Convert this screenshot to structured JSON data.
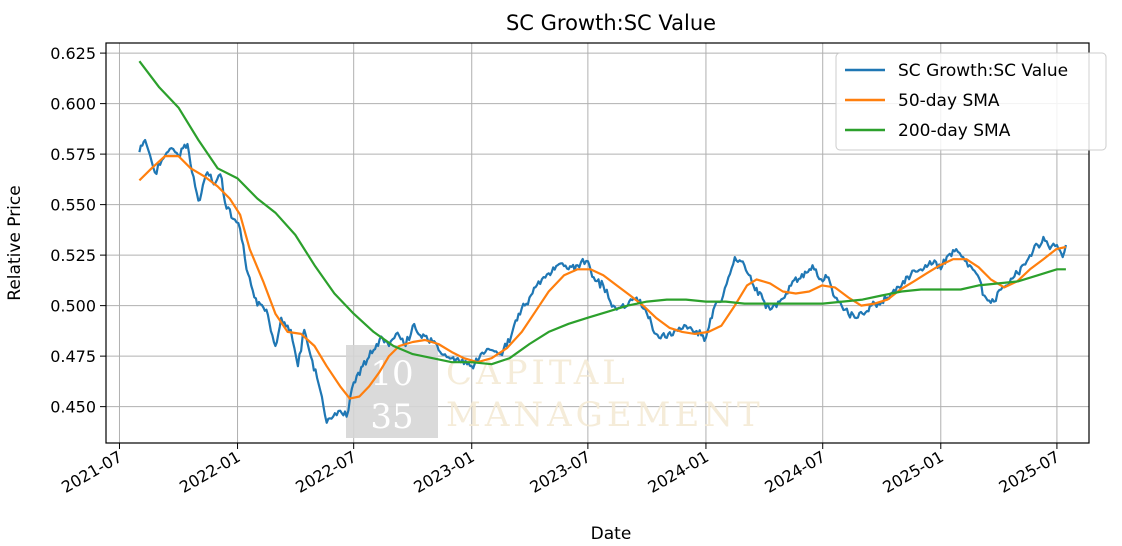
{
  "chart_data": {
    "type": "line",
    "title": "SC Growth:SC Value",
    "xlabel": "Date",
    "ylabel": "Relative Price",
    "xlim": [
      "2021-06-10",
      "2025-08-20"
    ],
    "ylim": [
      0.432,
      0.63
    ],
    "x_ticks": [
      "2021-07",
      "2022-01",
      "2022-07",
      "2023-01",
      "2023-07",
      "2024-01",
      "2024-07",
      "2025-01",
      "2025-07"
    ],
    "y_ticks": [
      "0.450",
      "0.475",
      "0.500",
      "0.525",
      "0.550",
      "0.575",
      "0.600",
      "0.625"
    ],
    "grid": true,
    "legend_position": "top-right",
    "series": [
      {
        "name": "SC Growth:SC Value",
        "color": "#1f77b4",
        "points": [
          [
            "2021-08-01",
            0.576
          ],
          [
            "2021-08-10",
            0.582
          ],
          [
            "2021-08-25",
            0.566
          ],
          [
            "2021-09-05",
            0.572
          ],
          [
            "2021-09-20",
            0.578
          ],
          [
            "2021-10-01",
            0.574
          ],
          [
            "2021-10-15",
            0.58
          ],
          [
            "2021-10-22",
            0.566
          ],
          [
            "2021-11-01",
            0.552
          ],
          [
            "2021-11-15",
            0.566
          ],
          [
            "2021-11-25",
            0.56
          ],
          [
            "2021-12-05",
            0.565
          ],
          [
            "2021-12-15",
            0.548
          ],
          [
            "2021-12-25",
            0.543
          ],
          [
            "2022-01-05",
            0.538
          ],
          [
            "2022-01-15",
            0.518
          ],
          [
            "2022-02-01",
            0.5
          ],
          [
            "2022-02-15",
            0.498
          ],
          [
            "2022-03-01",
            0.48
          ],
          [
            "2022-03-10",
            0.494
          ],
          [
            "2022-03-25",
            0.488
          ],
          [
            "2022-04-05",
            0.47
          ],
          [
            "2022-04-15",
            0.488
          ],
          [
            "2022-04-25",
            0.475
          ],
          [
            "2022-05-10",
            0.458
          ],
          [
            "2022-05-20",
            0.442
          ],
          [
            "2022-05-30",
            0.445
          ],
          [
            "2022-06-10",
            0.448
          ],
          [
            "2022-06-20",
            0.445
          ],
          [
            "2022-07-01",
            0.462
          ],
          [
            "2022-07-15",
            0.47
          ],
          [
            "2022-08-01",
            0.478
          ],
          [
            "2022-08-15",
            0.484
          ],
          [
            "2022-08-25",
            0.48
          ],
          [
            "2022-09-05",
            0.486
          ],
          [
            "2022-09-20",
            0.48
          ],
          [
            "2022-10-01",
            0.49
          ],
          [
            "2022-10-15",
            0.484
          ],
          [
            "2022-11-01",
            0.482
          ],
          [
            "2022-11-15",
            0.476
          ],
          [
            "2022-12-01",
            0.474
          ],
          [
            "2022-12-15",
            0.472
          ],
          [
            "2023-01-01",
            0.47
          ],
          [
            "2023-01-15",
            0.476
          ],
          [
            "2023-02-01",
            0.478
          ],
          [
            "2023-02-15",
            0.476
          ],
          [
            "2023-03-01",
            0.482
          ],
          [
            "2023-03-15",
            0.496
          ],
          [
            "2023-04-01",
            0.504
          ],
          [
            "2023-04-15",
            0.512
          ],
          [
            "2023-05-01",
            0.516
          ],
          [
            "2023-05-15",
            0.52
          ],
          [
            "2023-06-01",
            0.518
          ],
          [
            "2023-06-15",
            0.52
          ],
          [
            "2023-07-01",
            0.522
          ],
          [
            "2023-07-10",
            0.514
          ],
          [
            "2023-07-25",
            0.51
          ],
          [
            "2023-08-05",
            0.502
          ],
          [
            "2023-08-15",
            0.498
          ],
          [
            "2023-09-01",
            0.5
          ],
          [
            "2023-09-15",
            0.504
          ],
          [
            "2023-10-01",
            0.496
          ],
          [
            "2023-10-15",
            0.486
          ],
          [
            "2023-11-01",
            0.484
          ],
          [
            "2023-11-15",
            0.488
          ],
          [
            "2023-12-01",
            0.49
          ],
          [
            "2023-12-15",
            0.487
          ],
          [
            "2024-01-01",
            0.484
          ],
          [
            "2024-01-15",
            0.5
          ],
          [
            "2024-01-25",
            0.502
          ],
          [
            "2024-02-05",
            0.514
          ],
          [
            "2024-02-15",
            0.524
          ],
          [
            "2024-03-01",
            0.52
          ],
          [
            "2024-03-15",
            0.51
          ],
          [
            "2024-04-01",
            0.502
          ],
          [
            "2024-04-10",
            0.498
          ],
          [
            "2024-04-25",
            0.502
          ],
          [
            "2024-05-05",
            0.506
          ],
          [
            "2024-05-15",
            0.512
          ],
          [
            "2024-06-01",
            0.514
          ],
          [
            "2024-06-15",
            0.52
          ],
          [
            "2024-07-01",
            0.512
          ],
          [
            "2024-07-10",
            0.514
          ],
          [
            "2024-07-20",
            0.504
          ],
          [
            "2024-08-05",
            0.498
          ],
          [
            "2024-08-20",
            0.494
          ],
          [
            "2024-09-01",
            0.496
          ],
          [
            "2024-09-15",
            0.5
          ],
          [
            "2024-10-01",
            0.502
          ],
          [
            "2024-10-15",
            0.506
          ],
          [
            "2024-11-01",
            0.51
          ],
          [
            "2024-11-15",
            0.515
          ],
          [
            "2024-12-01",
            0.518
          ],
          [
            "2024-12-15",
            0.522
          ],
          [
            "2025-01-01",
            0.518
          ],
          [
            "2025-01-10",
            0.524
          ],
          [
            "2025-01-25",
            0.528
          ],
          [
            "2025-02-05",
            0.524
          ],
          [
            "2025-02-15",
            0.52
          ],
          [
            "2025-02-25",
            0.516
          ],
          [
            "2025-03-10",
            0.505
          ],
          [
            "2025-03-25",
            0.502
          ],
          [
            "2025-04-05",
            0.508
          ],
          [
            "2025-04-15",
            0.51
          ],
          [
            "2025-05-01",
            0.516
          ],
          [
            "2025-05-15",
            0.522
          ],
          [
            "2025-06-01",
            0.53
          ],
          [
            "2025-06-10",
            0.534
          ],
          [
            "2025-06-20",
            0.528
          ],
          [
            "2025-07-01",
            0.53
          ],
          [
            "2025-07-10",
            0.524
          ],
          [
            "2025-07-15",
            0.53
          ]
        ]
      },
      {
        "name": "50-day SMA",
        "color": "#ff7f0e",
        "points": [
          [
            "2021-08-01",
            0.562
          ],
          [
            "2021-08-20",
            0.568
          ],
          [
            "2021-09-10",
            0.574
          ],
          [
            "2021-10-01",
            0.574
          ],
          [
            "2021-10-20",
            0.568
          ],
          [
            "2021-11-10",
            0.564
          ],
          [
            "2021-12-01",
            0.559
          ],
          [
            "2021-12-20",
            0.553
          ],
          [
            "2022-01-05",
            0.545
          ],
          [
            "2022-01-20",
            0.528
          ],
          [
            "2022-02-10",
            0.512
          ],
          [
            "2022-03-01",
            0.496
          ],
          [
            "2022-03-20",
            0.487
          ],
          [
            "2022-04-10",
            0.486
          ],
          [
            "2022-05-01",
            0.48
          ],
          [
            "2022-05-20",
            0.47
          ],
          [
            "2022-06-10",
            0.46
          ],
          [
            "2022-06-25",
            0.454
          ],
          [
            "2022-07-10",
            0.455
          ],
          [
            "2022-07-25",
            0.46
          ],
          [
            "2022-08-10",
            0.467
          ],
          [
            "2022-08-25",
            0.475
          ],
          [
            "2022-09-10",
            0.48
          ],
          [
            "2022-10-01",
            0.482
          ],
          [
            "2022-10-20",
            0.483
          ],
          [
            "2022-11-10",
            0.481
          ],
          [
            "2022-12-01",
            0.477
          ],
          [
            "2022-12-20",
            0.474
          ],
          [
            "2023-01-10",
            0.472
          ],
          [
            "2023-02-01",
            0.474
          ],
          [
            "2023-02-25",
            0.479
          ],
          [
            "2023-03-20",
            0.487
          ],
          [
            "2023-04-10",
            0.497
          ],
          [
            "2023-05-01",
            0.507
          ],
          [
            "2023-05-25",
            0.515
          ],
          [
            "2023-06-15",
            0.518
          ],
          [
            "2023-07-05",
            0.518
          ],
          [
            "2023-07-25",
            0.515
          ],
          [
            "2023-08-15",
            0.51
          ],
          [
            "2023-09-05",
            0.505
          ],
          [
            "2023-09-25",
            0.5
          ],
          [
            "2023-10-15",
            0.494
          ],
          [
            "2023-11-05",
            0.489
          ],
          [
            "2023-11-25",
            0.487
          ],
          [
            "2023-12-15",
            0.486
          ],
          [
            "2024-01-05",
            0.487
          ],
          [
            "2024-01-25",
            0.49
          ],
          [
            "2024-02-15",
            0.5
          ],
          [
            "2024-03-05",
            0.51
          ],
          [
            "2024-03-20",
            0.513
          ],
          [
            "2024-04-10",
            0.511
          ],
          [
            "2024-04-30",
            0.507
          ],
          [
            "2024-05-20",
            0.506
          ],
          [
            "2024-06-10",
            0.507
          ],
          [
            "2024-06-30",
            0.51
          ],
          [
            "2024-07-20",
            0.509
          ],
          [
            "2024-08-10",
            0.504
          ],
          [
            "2024-08-30",
            0.5
          ],
          [
            "2024-09-20",
            0.501
          ],
          [
            "2024-10-10",
            0.503
          ],
          [
            "2024-10-30",
            0.508
          ],
          [
            "2024-11-20",
            0.512
          ],
          [
            "2024-12-10",
            0.516
          ],
          [
            "2024-12-31",
            0.52
          ],
          [
            "2025-01-20",
            0.523
          ],
          [
            "2025-02-10",
            0.523
          ],
          [
            "2025-03-01",
            0.519
          ],
          [
            "2025-03-20",
            0.513
          ],
          [
            "2025-04-10",
            0.509
          ],
          [
            "2025-04-30",
            0.512
          ],
          [
            "2025-05-20",
            0.518
          ],
          [
            "2025-06-10",
            0.523
          ],
          [
            "2025-06-30",
            0.528
          ],
          [
            "2025-07-15",
            0.529
          ]
        ]
      },
      {
        "name": "200-day SMA",
        "color": "#2ca02c",
        "points": [
          [
            "2021-08-01",
            0.621
          ],
          [
            "2021-09-01",
            0.608
          ],
          [
            "2021-10-01",
            0.598
          ],
          [
            "2021-11-01",
            0.582
          ],
          [
            "2021-12-01",
            0.568
          ],
          [
            "2022-01-01",
            0.563
          ],
          [
            "2022-02-01",
            0.553
          ],
          [
            "2022-03-01",
            0.546
          ],
          [
            "2022-04-01",
            0.535
          ],
          [
            "2022-05-01",
            0.52
          ],
          [
            "2022-06-01",
            0.506
          ],
          [
            "2022-07-01",
            0.496
          ],
          [
            "2022-08-01",
            0.487
          ],
          [
            "2022-09-01",
            0.48
          ],
          [
            "2022-10-01",
            0.476
          ],
          [
            "2022-11-01",
            0.474
          ],
          [
            "2022-12-01",
            0.472
          ],
          [
            "2023-01-01",
            0.472
          ],
          [
            "2023-02-01",
            0.471
          ],
          [
            "2023-03-01",
            0.474
          ],
          [
            "2023-04-01",
            0.481
          ],
          [
            "2023-05-01",
            0.487
          ],
          [
            "2023-06-01",
            0.491
          ],
          [
            "2023-07-01",
            0.494
          ],
          [
            "2023-08-01",
            0.497
          ],
          [
            "2023-09-01",
            0.5
          ],
          [
            "2023-10-01",
            0.502
          ],
          [
            "2023-11-01",
            0.503
          ],
          [
            "2023-12-01",
            0.503
          ],
          [
            "2024-01-01",
            0.502
          ],
          [
            "2024-02-01",
            0.502
          ],
          [
            "2024-03-01",
            0.501
          ],
          [
            "2024-04-01",
            0.501
          ],
          [
            "2024-05-01",
            0.501
          ],
          [
            "2024-06-01",
            0.501
          ],
          [
            "2024-07-01",
            0.501
          ],
          [
            "2024-08-01",
            0.502
          ],
          [
            "2024-09-01",
            0.503
          ],
          [
            "2024-10-01",
            0.505
          ],
          [
            "2024-11-01",
            0.507
          ],
          [
            "2024-12-01",
            0.508
          ],
          [
            "2025-01-01",
            0.508
          ],
          [
            "2025-02-01",
            0.508
          ],
          [
            "2025-03-01",
            0.51
          ],
          [
            "2025-04-01",
            0.511
          ],
          [
            "2025-05-01",
            0.512
          ],
          [
            "2025-06-01",
            0.515
          ],
          [
            "2025-07-01",
            0.518
          ],
          [
            "2025-07-15",
            0.518
          ]
        ]
      }
    ]
  },
  "watermark": {
    "box_top": "10",
    "box_bottom": "35",
    "line1": "CAPITAL",
    "line2": "MANAGEMENT",
    "box_color": "#d6d6d6",
    "text_color": "#f4ead5"
  }
}
